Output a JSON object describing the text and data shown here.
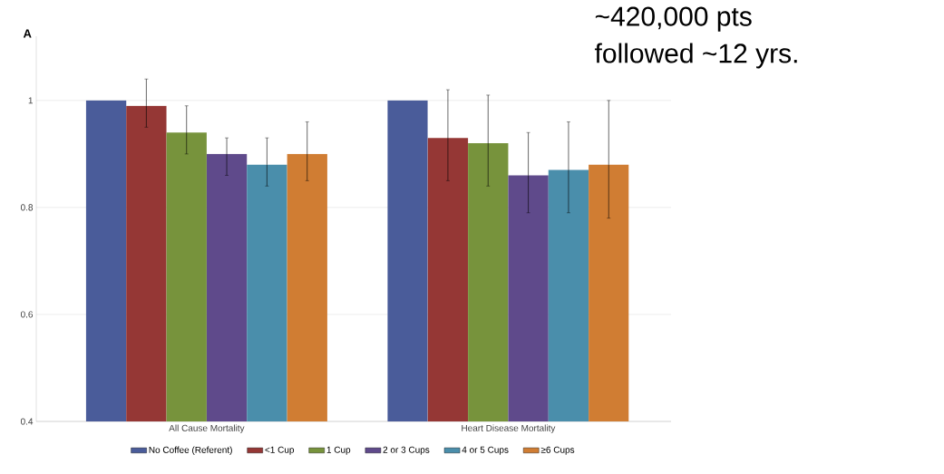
{
  "chart_data": {
    "type": "bar",
    "categories": [
      "All Cause Mortality",
      "Heart Disease Mortality"
    ],
    "series": [
      {
        "name": "No Coffee (Referent)",
        "color": "#4a5c9a",
        "values": [
          1,
          1
        ]
      },
      {
        "name": "<1 Cup",
        "color": "#953735",
        "values": [
          0.99,
          0.93
        ],
        "errors": [
          [
            0.95,
            1.04
          ],
          [
            0.85,
            1.02
          ]
        ]
      },
      {
        "name": "1 Cup",
        "color": "#77933c",
        "values": [
          0.94,
          0.92
        ],
        "errors": [
          [
            0.9,
            0.99
          ],
          [
            0.84,
            1.01
          ]
        ]
      },
      {
        "name": "2 or 3 Cups",
        "color": "#5f4a8b",
        "values": [
          0.9,
          0.86
        ],
        "errors": [
          [
            0.86,
            0.93
          ],
          [
            0.79,
            0.94
          ]
        ]
      },
      {
        "name": "4 or 5 Cups",
        "color": "#4a8eab",
        "values": [
          0.88,
          0.87
        ],
        "errors": [
          [
            0.84,
            0.93
          ],
          [
            0.79,
            0.96
          ]
        ]
      },
      {
        "name": "≥6 Cups",
        "color": "#d07d33",
        "values": [
          0.9,
          0.88
        ],
        "errors": [
          [
            0.85,
            0.96
          ],
          [
            0.78,
            1.0
          ]
        ]
      }
    ],
    "ylim": [
      0.4,
      1.12
    ],
    "yticks": [
      0.4,
      0.6,
      0.8,
      1
    ],
    "grid": "y",
    "legend": "bottom",
    "annotations": [
      "A",
      "~420,000 pts",
      "followed ~12 yrs."
    ]
  }
}
